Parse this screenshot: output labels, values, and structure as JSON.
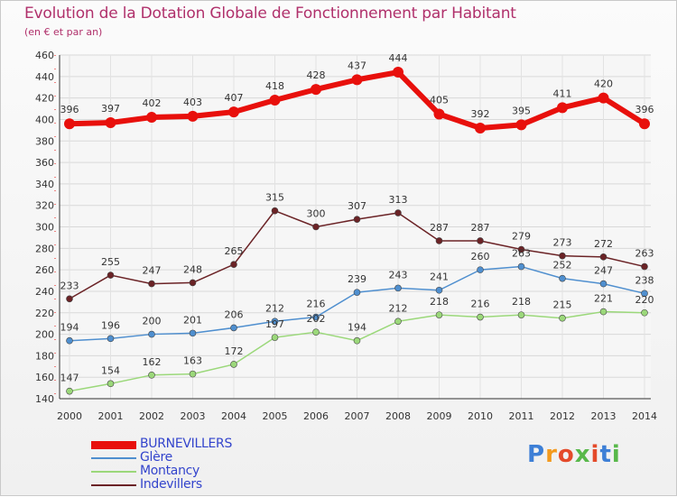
{
  "title": "Evolution de la Dotation Globale de Fonctionnement par Habitant",
  "subtitle": "(en € et par an)",
  "logo": {
    "text": "Proxiti",
    "colors": [
      "#3d7fd6",
      "#f39a1e",
      "#e44a2a",
      "#58b84a",
      "#e44a2a",
      "#3d7fd6",
      "#58b84a"
    ]
  },
  "chart_data": {
    "type": "line",
    "title": "Evolution de la Dotation Globale de Fonctionnement par Habitant",
    "subtitle": "(en € et par an)",
    "ylabel": "",
    "xlabel": "",
    "x": [
      "2000",
      "2001",
      "2002",
      "2003",
      "2004",
      "2005",
      "2006",
      "2007",
      "2008",
      "2009",
      "2010",
      "2011",
      "2012",
      "2013",
      "2014"
    ],
    "ylim": [
      140,
      460
    ],
    "yticks": [
      140,
      160,
      180,
      200,
      220,
      240,
      260,
      280,
      300,
      320,
      340,
      360,
      380,
      400,
      420,
      440,
      460
    ],
    "grid": true,
    "legend_position": "bottom-left",
    "series": [
      {
        "name": "BURNEVILLERS",
        "color": "#e8100c",
        "values": [
          396,
          397,
          402,
          403,
          407,
          418,
          428,
          437,
          444,
          405,
          392,
          395,
          411,
          420,
          396
        ]
      },
      {
        "name": "Glère",
        "color": "#4f8fcf",
        "values": [
          194,
          196,
          200,
          201,
          206,
          212,
          216,
          239,
          243,
          241,
          260,
          263,
          252,
          247,
          238
        ]
      },
      {
        "name": "Montancy",
        "color": "#9bd87a",
        "values": [
          147,
          154,
          162,
          163,
          172,
          197,
          202,
          194,
          212,
          218,
          216,
          218,
          215,
          221,
          220
        ]
      },
      {
        "name": "Indevillers",
        "color": "#6b2326",
        "values": [
          233,
          255,
          247,
          248,
          265,
          315,
          300,
          307,
          313,
          287,
          287,
          279,
          273,
          272,
          263
        ]
      }
    ]
  }
}
